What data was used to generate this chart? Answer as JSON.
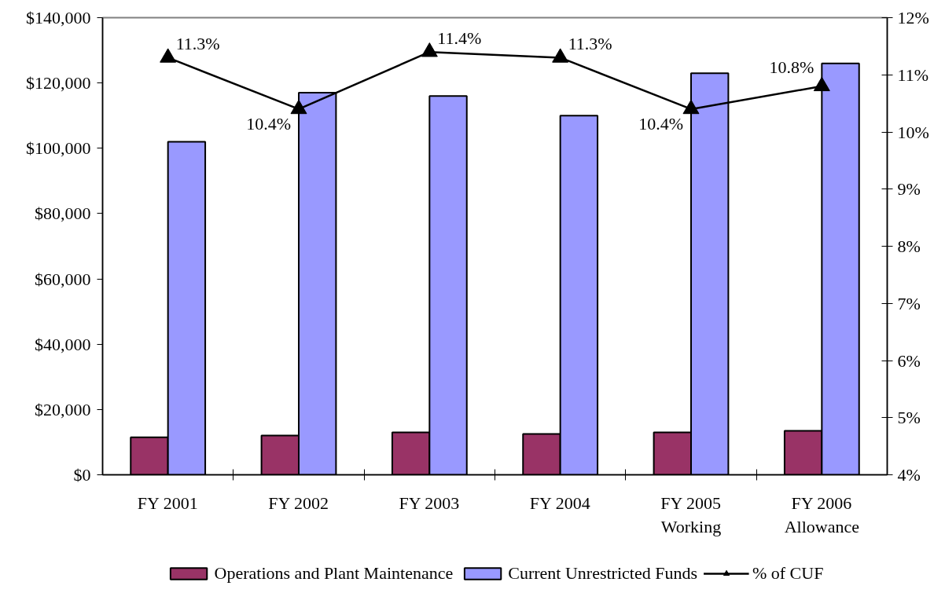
{
  "chart_data": {
    "type": "bar",
    "categories": [
      "FY 2001",
      "FY 2002",
      "FY 2003",
      "FY 2004",
      "FY 2005\nWorking",
      "FY 2006\nAllowance"
    ],
    "series": [
      {
        "name": "Operations and Plant Maintenance",
        "color": "#993366",
        "values": [
          11500,
          12000,
          13000,
          12500,
          13000,
          13500
        ]
      },
      {
        "name": "Current Unrestricted Funds",
        "color": "#9999ff",
        "values": [
          102000,
          117000,
          116000,
          110000,
          123000,
          126000
        ]
      },
      {
        "name": "% of CUF",
        "type": "line",
        "axis": "y2",
        "color": "#000000",
        "marker": "triangle",
        "values": [
          11.3,
          10.4,
          11.4,
          11.3,
          10.4,
          10.8
        ],
        "value_labels": [
          "11.3%",
          "10.4%",
          "11.4%",
          "11.3%",
          "10.4%",
          "10.8%"
        ]
      }
    ],
    "ylim": [
      0,
      140000
    ],
    "yticks": [
      {
        "value": 0,
        "label": "$0"
      },
      {
        "value": 20000,
        "label": "$20,000"
      },
      {
        "value": 40000,
        "label": "$40,000"
      },
      {
        "value": 60000,
        "label": "$60,000"
      },
      {
        "value": 80000,
        "label": "$80,000"
      },
      {
        "value": 100000,
        "label": "$100,000"
      },
      {
        "value": 120000,
        "label": "$120,000"
      },
      {
        "value": 140000,
        "label": "$140,000"
      }
    ],
    "y2lim": [
      4,
      12
    ],
    "y2ticks": [
      {
        "value": 4,
        "label": "4%"
      },
      {
        "value": 5,
        "label": "5%"
      },
      {
        "value": 6,
        "label": "6%"
      },
      {
        "value": 7,
        "label": "7%"
      },
      {
        "value": 8,
        "label": "8%"
      },
      {
        "value": 9,
        "label": "9%"
      },
      {
        "value": 10,
        "label": "10%"
      },
      {
        "value": 11,
        "label": "11%"
      },
      {
        "value": 12,
        "label": "12%"
      }
    ],
    "legend": "bottom"
  }
}
